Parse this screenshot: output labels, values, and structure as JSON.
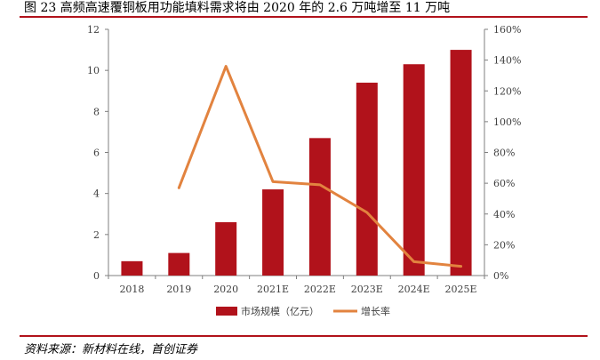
{
  "figure": {
    "title": "图  23 高频高速覆铜板用功能填料需求将由 2020 年的 2.6 万吨增至 11 万吨",
    "source": "资料来源：新材料在线，首创证券"
  },
  "colors": {
    "bar": "#b1121b",
    "line": "#e2833f",
    "rule": "#b1121b",
    "axis": "#7f7f7f"
  },
  "chart_data": {
    "type": "bar",
    "categories": [
      "2018",
      "2019",
      "2020",
      "2021E",
      "2022E",
      "2023E",
      "2024E",
      "2025E"
    ],
    "series": [
      {
        "name": "市场规模（亿元）",
        "type": "bar",
        "axis": "left",
        "values": [
          0.7,
          1.1,
          2.6,
          4.2,
          6.7,
          9.4,
          10.3,
          11.0
        ]
      },
      {
        "name": "增长率",
        "type": "line",
        "axis": "right",
        "values": [
          null,
          57,
          136,
          61,
          59,
          41,
          9,
          6
        ]
      }
    ],
    "y_left": {
      "ylim": [
        0,
        12
      ],
      "ticks": [
        "0",
        "2",
        "4",
        "6",
        "8",
        "10",
        "12"
      ]
    },
    "y_right": {
      "ylim": [
        0,
        160
      ],
      "ticks": [
        "0%",
        "20%",
        "40%",
        "60%",
        "80%",
        "100%",
        "120%",
        "140%",
        "160%"
      ]
    },
    "legend": "bottom-center",
    "grid": false
  }
}
